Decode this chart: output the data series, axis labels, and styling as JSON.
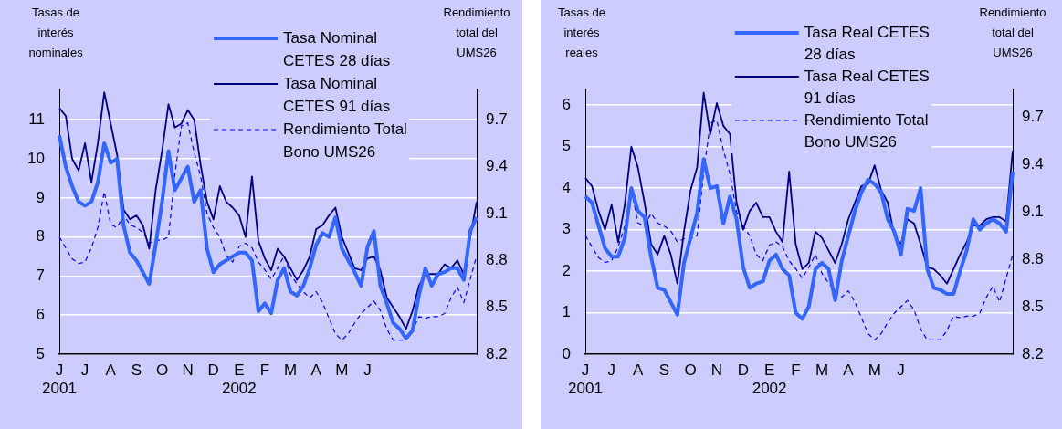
{
  "chart_data": [
    {
      "type": "line",
      "ylabel": "Tasas de interés nominales",
      "y2label": "Rendimiento total del UMS26",
      "categories": [
        "J\n2001",
        null,
        null,
        null,
        "J",
        null,
        null,
        null,
        "A",
        null,
        null,
        null,
        "S",
        null,
        null,
        null,
        "O",
        null,
        null,
        null,
        "N",
        null,
        null,
        null,
        "D",
        null,
        null,
        null,
        "E\n2002",
        null,
        null,
        null,
        "F",
        null,
        null,
        null,
        "M",
        null,
        null,
        null,
        "A",
        null,
        null,
        null,
        "M",
        null,
        null,
        null,
        "J",
        null,
        null,
        null,
        null,
        null,
        null,
        null,
        null,
        null,
        null,
        null,
        null,
        null,
        null,
        null,
        null,
        null
      ],
      "ylim": [
        5,
        11.8
      ],
      "yticks": [
        5,
        6,
        7,
        8,
        9,
        10,
        11
      ],
      "y2lim": [
        8.2,
        9.9
      ],
      "y2ticks": [
        8.2,
        8.5,
        8.8,
        9.1,
        9.4,
        9.7
      ],
      "grid": "y",
      "legend": "top",
      "series": [
        {
          "name": "Tasa Nominal CETES 28 días",
          "color": "#3366ff",
          "values": [
            10.6,
            9.8,
            9.3,
            8.9,
            8.8,
            8.9,
            9.4,
            10.4,
            9.9,
            10.0,
            8.3,
            7.6,
            7.4,
            7.1,
            6.8,
            7.8,
            8.9,
            10.2,
            9.2,
            9.5,
            9.8,
            8.9,
            9.2,
            7.7,
            7.1,
            7.3,
            7.4,
            7.5,
            7.6,
            7.6,
            7.4,
            6.1,
            6.3,
            6.05,
            6.9,
            7.2,
            6.6,
            6.5,
            6.75,
            7.2,
            7.8,
            8.1,
            8.0,
            8.5,
            7.7,
            7.4,
            7.1,
            6.75,
            7.75,
            8.15,
            6.75,
            6.3,
            5.8,
            5.65,
            5.4,
            5.6,
            6.5,
            7.2,
            6.75,
            7.05,
            7.1,
            7.2,
            7.2,
            6.9,
            8.15,
            8.5
          ]
        },
        {
          "name": "Tasa Nominal CETES 91 días",
          "color": "#000080",
          "values": [
            11.3,
            11.1,
            10.0,
            9.7,
            10.4,
            9.4,
            10.4,
            11.7,
            10.9,
            10.1,
            8.7,
            8.45,
            8.55,
            8.3,
            7.7,
            9.2,
            10.2,
            11.4,
            10.8,
            10.9,
            11.25,
            11.0,
            9.85,
            8.9,
            8.45,
            9.3,
            8.9,
            8.75,
            8.55,
            8.0,
            9.55,
            7.9,
            7.45,
            7.15,
            7.7,
            7.5,
            7.2,
            6.9,
            7.15,
            7.5,
            8.2,
            8.3,
            8.55,
            8.75,
            8.0,
            7.6,
            7.2,
            7.15,
            7.45,
            7.5,
            7.15,
            6.45,
            6.2,
            5.95,
            5.65,
            6.1,
            6.75,
            7.05,
            7.05,
            7.05,
            7.3,
            7.2,
            7.4,
            7.05,
            8.0,
            8.9
          ]
        },
        {
          "name": "Rendimiento Total Bono UMS26",
          "color": "#0000ff",
          "axis": "y2",
          "line_style": "dashed",
          "values": [
            8.95,
            8.88,
            8.81,
            8.78,
            8.79,
            8.88,
            9.01,
            9.24,
            9.03,
            9.01,
            9.09,
            9.03,
            9.01,
            8.98,
            8.91,
            8.93,
            8.93,
            8.95,
            9.35,
            9.66,
            9.68,
            9.49,
            9.34,
            9.1,
            9.01,
            8.95,
            8.83,
            8.79,
            8.89,
            8.91,
            8.88,
            8.79,
            8.74,
            8.68,
            8.75,
            8.83,
            8.71,
            8.65,
            8.6,
            8.56,
            8.6,
            8.53,
            8.43,
            8.33,
            8.29,
            8.33,
            8.4,
            8.46,
            8.5,
            8.54,
            8.48,
            8.36,
            8.29,
            8.29,
            8.29,
            8.35,
            8.44,
            8.43,
            8.44,
            8.44,
            8.46,
            8.56,
            8.63,
            8.53,
            8.68,
            8.83
          ]
        }
      ]
    },
    {
      "type": "line",
      "ylabel": "Tasas de interés reales",
      "y2label": "Rendimiento total del UMS26",
      "categories": [
        "J\n2001",
        null,
        null,
        null,
        "J",
        null,
        null,
        null,
        "A",
        null,
        null,
        null,
        "S",
        null,
        null,
        null,
        "O",
        null,
        null,
        null,
        "N",
        null,
        null,
        null,
        "D",
        null,
        null,
        null,
        "E\n2002",
        null,
        null,
        null,
        "F",
        null,
        null,
        null,
        "M",
        null,
        null,
        null,
        "A",
        null,
        null,
        null,
        "M",
        null,
        null,
        null,
        "J",
        null,
        null,
        null,
        null,
        null,
        null,
        null,
        null,
        null,
        null,
        null,
        null,
        null,
        null,
        null,
        null,
        null
      ],
      "ylim": [
        0,
        6.4
      ],
      "yticks": [
        0,
        1,
        2,
        3,
        4,
        5,
        6
      ],
      "y2lim": [
        8.2,
        9.88
      ],
      "y2ticks": [
        8.2,
        8.5,
        8.8,
        9.1,
        9.4,
        9.7
      ],
      "grid": "y",
      "legend": "top",
      "series": [
        {
          "name": "Tasa Real CETES 28 días",
          "color": "#3366ff",
          "values": [
            3.8,
            3.65,
            3.1,
            2.55,
            2.35,
            2.35,
            2.8,
            4.0,
            3.45,
            3.3,
            2.35,
            1.6,
            1.55,
            1.25,
            0.95,
            2.2,
            2.8,
            3.4,
            4.7,
            4.0,
            4.05,
            3.15,
            3.8,
            3.25,
            2.1,
            1.6,
            1.7,
            1.75,
            2.25,
            2.4,
            2.05,
            1.9,
            1.0,
            0.85,
            1.15,
            2.05,
            2.2,
            2.05,
            1.3,
            2.25,
            2.85,
            3.45,
            3.9,
            4.2,
            4.1,
            3.9,
            3.25,
            2.95,
            2.4,
            3.5,
            3.45,
            4.0,
            2.05,
            1.6,
            1.55,
            1.45,
            1.45,
            2.0,
            2.5,
            3.25,
            3.0,
            3.15,
            3.25,
            3.15,
            2.95,
            4.4
          ]
        },
        {
          "name": "Tasa Real CETES 91 días",
          "color": "#000080",
          "values": [
            4.25,
            4.05,
            3.45,
            3.0,
            3.6,
            2.7,
            3.6,
            5.0,
            4.5,
            3.65,
            2.65,
            2.4,
            2.85,
            2.4,
            1.7,
            2.95,
            3.95,
            4.5,
            6.3,
            5.3,
            6.05,
            5.5,
            5.3,
            3.65,
            3.0,
            3.45,
            3.65,
            3.3,
            3.3,
            2.95,
            2.7,
            4.4,
            2.65,
            2.05,
            2.2,
            2.95,
            2.8,
            2.5,
            2.2,
            2.65,
            3.25,
            3.65,
            4.05,
            4.1,
            4.55,
            3.95,
            3.65,
            2.85,
            2.65,
            3.25,
            3.15,
            2.65,
            2.1,
            2.05,
            1.9,
            1.7,
            2.05,
            2.4,
            2.7,
            3.1,
            3.1,
            3.25,
            3.3,
            3.3,
            3.2,
            4.9
          ]
        },
        {
          "name": "Rendimiento Total Bono UMS26",
          "color": "#0000ff",
          "axis": "y2",
          "line_style": "dashed",
          "values": [
            8.95,
            8.88,
            8.81,
            8.78,
            8.79,
            8.88,
            9.01,
            9.24,
            9.03,
            9.01,
            9.09,
            9.03,
            9.01,
            8.98,
            8.91,
            8.93,
            8.93,
            8.95,
            9.35,
            9.66,
            9.68,
            9.49,
            9.34,
            9.1,
            9.01,
            8.95,
            8.83,
            8.79,
            8.89,
            8.91,
            8.88,
            8.79,
            8.74,
            8.68,
            8.75,
            8.83,
            8.71,
            8.65,
            8.6,
            8.56,
            8.6,
            8.53,
            8.43,
            8.33,
            8.29,
            8.33,
            8.4,
            8.46,
            8.5,
            8.54,
            8.48,
            8.36,
            8.29,
            8.29,
            8.29,
            8.35,
            8.44,
            8.43,
            8.44,
            8.44,
            8.46,
            8.56,
            8.63,
            8.53,
            8.68,
            8.83
          ]
        }
      ]
    }
  ]
}
